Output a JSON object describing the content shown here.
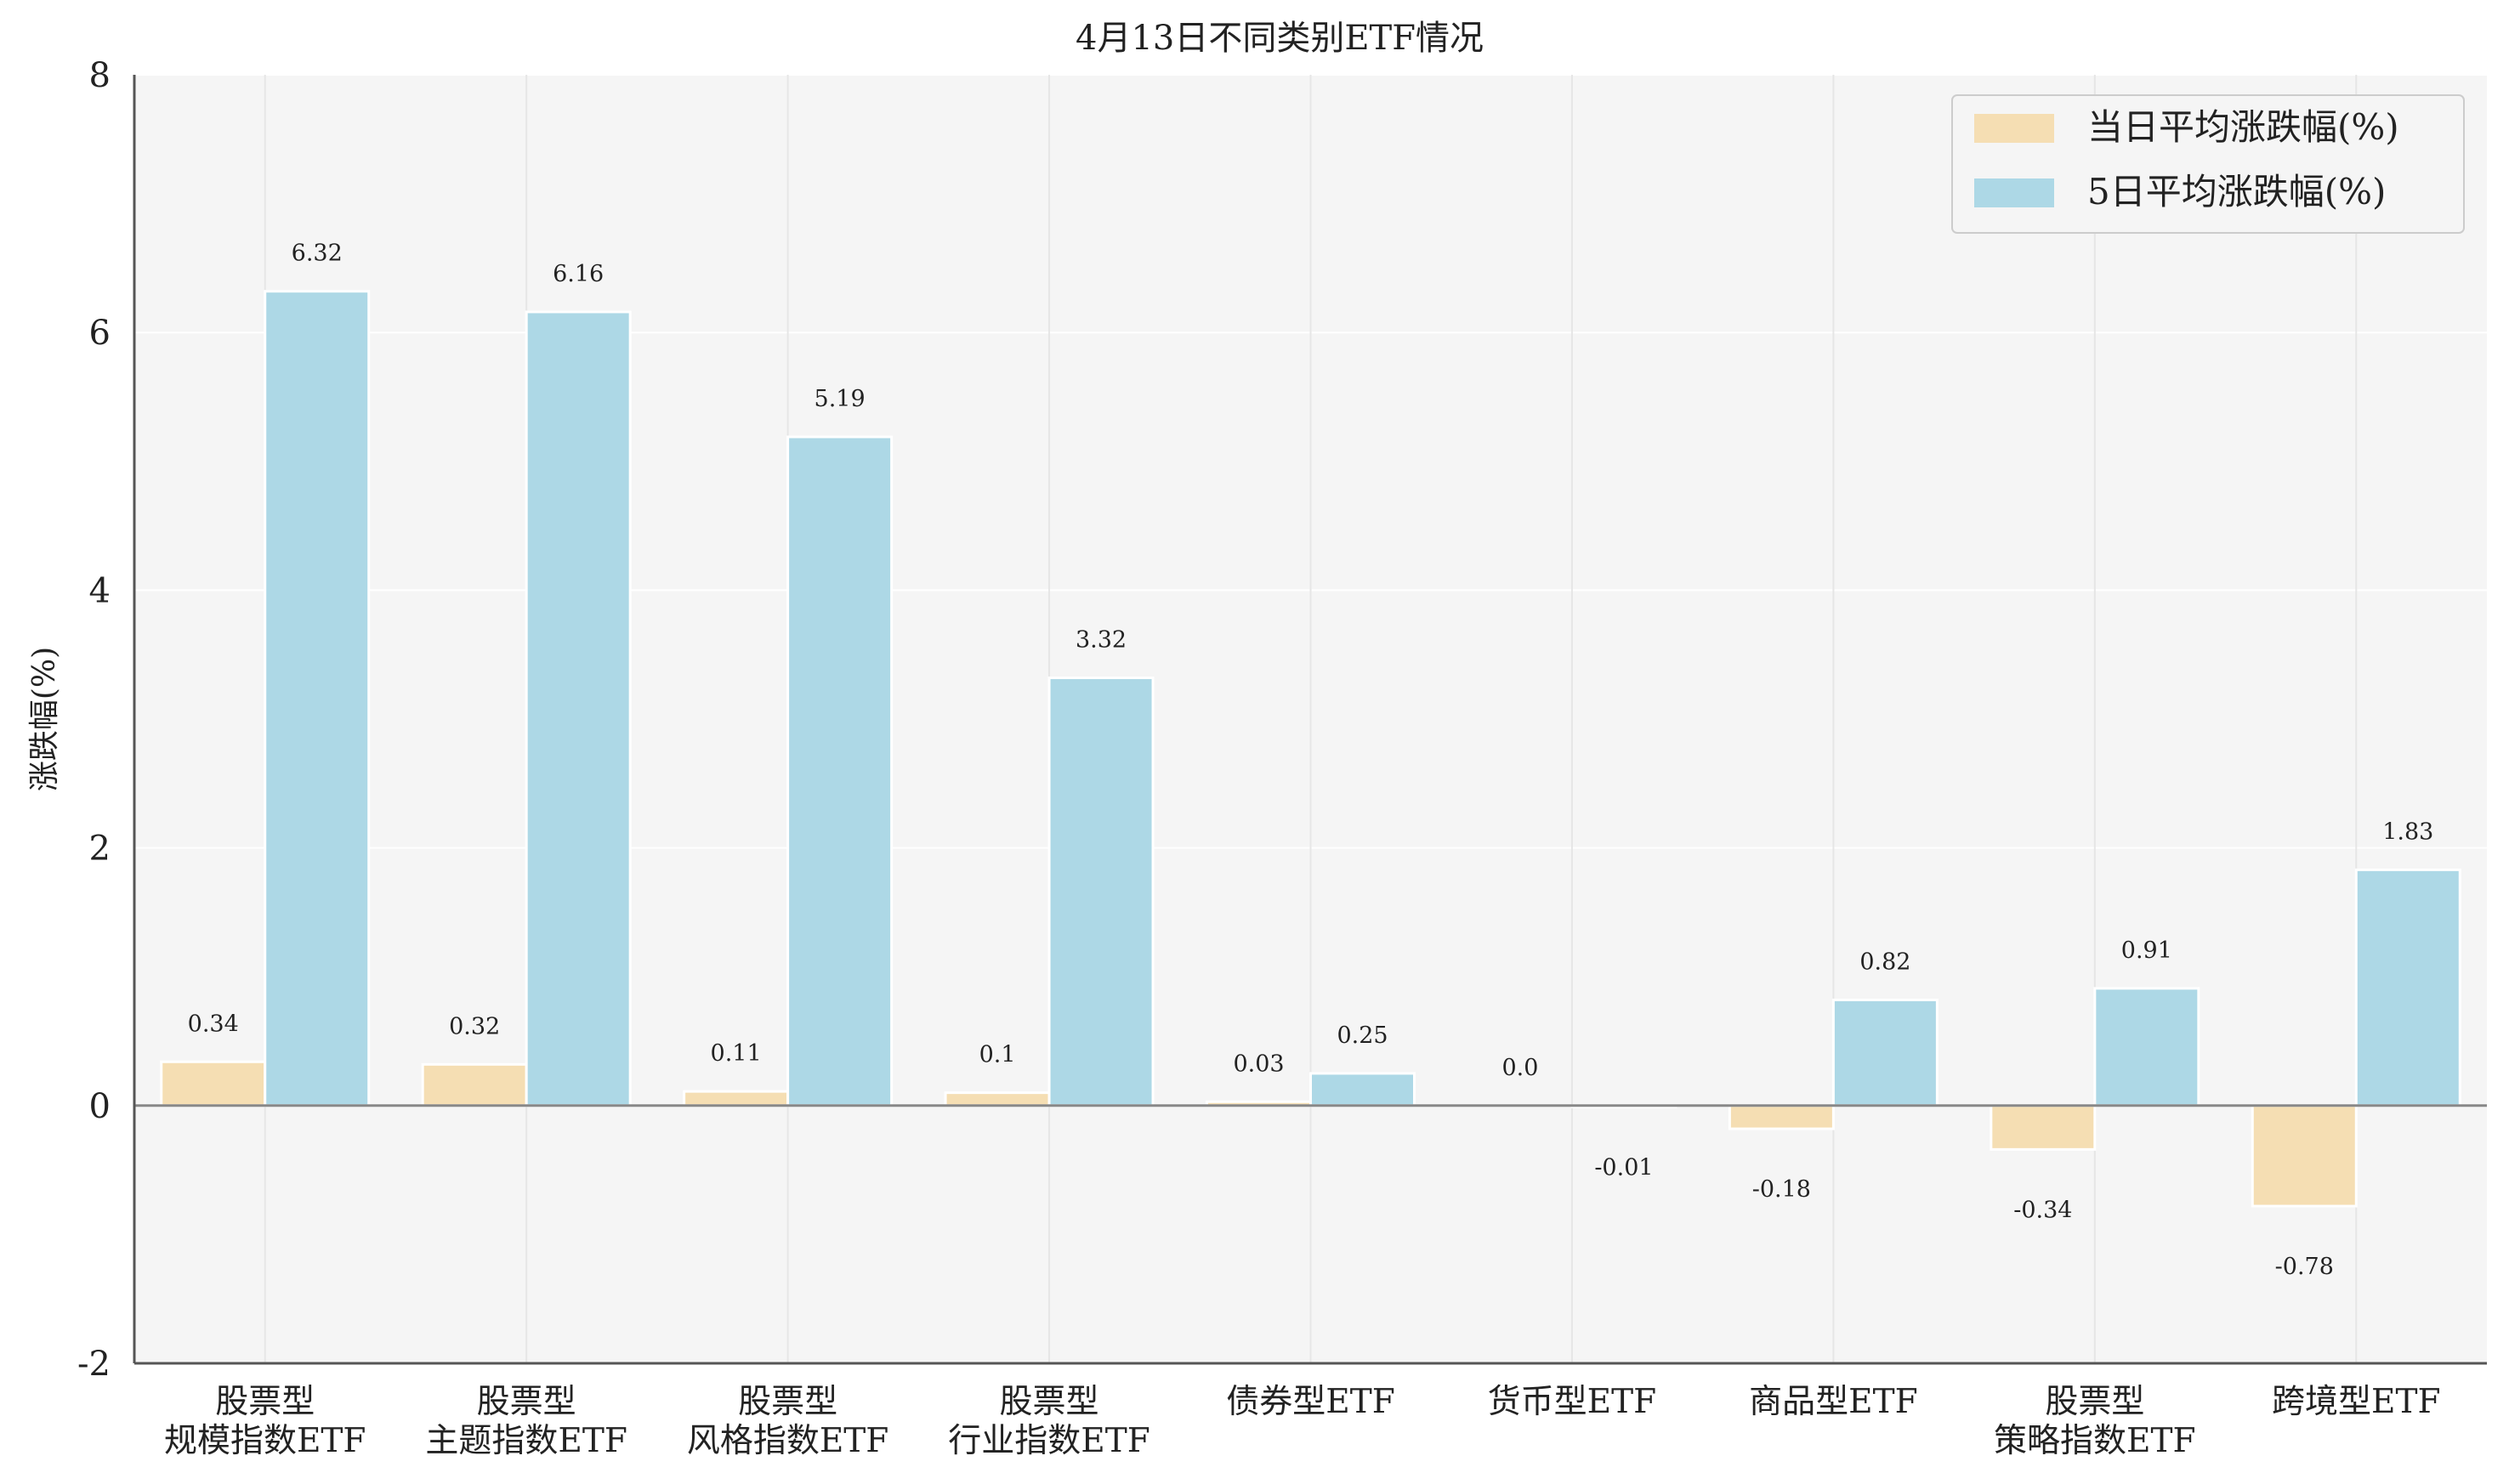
{
  "chart_data": {
    "type": "bar",
    "title": "4月13日不同类别ETF情况",
    "ylabel": "涨跌幅(%)",
    "xlabel": "",
    "ylim": [
      -2,
      8
    ],
    "yticks": [
      "-2",
      "0",
      "2",
      "4",
      "6",
      "8"
    ],
    "grid": true,
    "legend_position": "top-right",
    "categories": [
      [
        "股票型",
        "规模指数ETF"
      ],
      [
        "股票型",
        "主题指数ETF"
      ],
      [
        "股票型",
        "风格指数ETF"
      ],
      [
        "股票型",
        "行业指数ETF"
      ],
      [
        "债券型ETF"
      ],
      [
        "货币型ETF"
      ],
      [
        "商品型ETF"
      ],
      [
        "股票型",
        "策略指数ETF"
      ],
      [
        "跨境型ETF"
      ]
    ],
    "series": [
      {
        "name": "当日平均涨跌幅(%)",
        "color": "#f5deb3",
        "values": [
          0.34,
          0.32,
          0.11,
          0.1,
          0.03,
          0.0,
          -0.18,
          -0.34,
          -0.78
        ],
        "labels": [
          "0.34",
          "0.32",
          "0.11",
          "0.1",
          "0.03",
          "0.0",
          "-0.18",
          "-0.34",
          "-0.78"
        ]
      },
      {
        "name": "5日平均涨跌幅(%)",
        "color": "#add8e6",
        "values": [
          6.32,
          6.16,
          5.19,
          3.32,
          0.25,
          -0.01,
          0.82,
          0.91,
          1.83
        ],
        "labels": [
          "6.32",
          "6.16",
          "5.19",
          "3.32",
          "0.25",
          "-0.01",
          "0.82",
          "0.91",
          "1.83"
        ]
      }
    ]
  }
}
